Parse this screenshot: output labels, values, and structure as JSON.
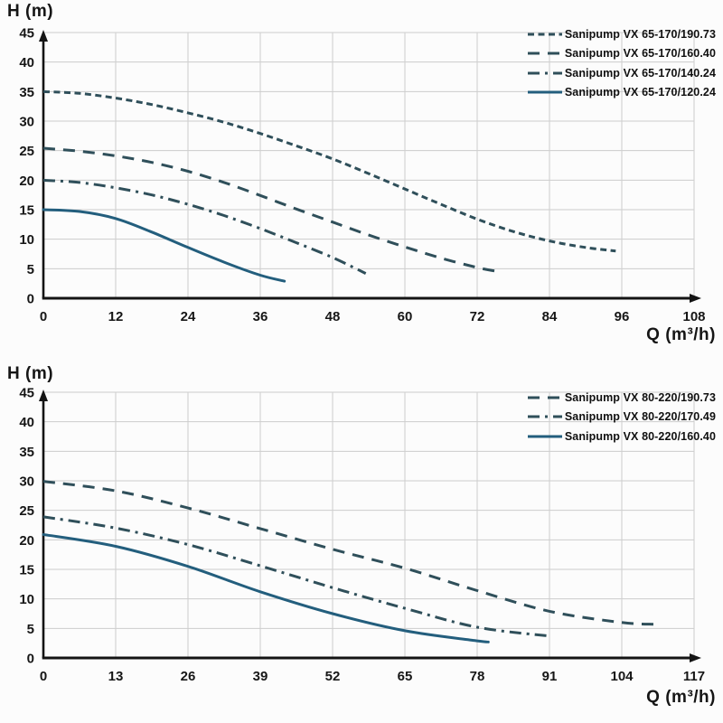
{
  "page": {
    "background": "#fcfcfc",
    "axis_color": "#141414",
    "grid_color": "#cdcdcd",
    "dash_color": "#2f4f5a",
    "solid_color": "#235e7d"
  },
  "chart_data": [
    {
      "type": "line",
      "title": "",
      "ylabel": "H (m)",
      "xlabel": "Q (m³/h)",
      "xlim": [
        0,
        108
      ],
      "ylim": [
        0,
        45
      ],
      "x_ticks": [
        0,
        12,
        24,
        36,
        48,
        60,
        72,
        84,
        96,
        108
      ],
      "y_ticks": [
        0,
        5,
        10,
        15,
        20,
        25,
        30,
        35,
        40,
        45
      ],
      "grid": true,
      "legend_position": "top-right",
      "series": [
        {
          "name": "Sanipump VX 65-170/190.73",
          "style": "dash-short",
          "color": "#2f4f5a",
          "points": [
            [
              0,
              35
            ],
            [
              6,
              34.7
            ],
            [
              12,
              33.9
            ],
            [
              18,
              32.8
            ],
            [
              24,
              31.4
            ],
            [
              30,
              29.8
            ],
            [
              36,
              27.9
            ],
            [
              42,
              25.8
            ],
            [
              48,
              23.6
            ],
            [
              54,
              21.1
            ],
            [
              60,
              18.5
            ],
            [
              66,
              15.9
            ],
            [
              72,
              13.4
            ],
            [
              78,
              11.3
            ],
            [
              84,
              9.7
            ],
            [
              90,
              8.6
            ],
            [
              95,
              8
            ]
          ]
        },
        {
          "name": "Sanipump VX 65-170/160.40",
          "style": "dash-long",
          "color": "#2f4f5a",
          "points": [
            [
              0,
              25.4
            ],
            [
              6,
              24.9
            ],
            [
              12,
              24.1
            ],
            [
              18,
              23
            ],
            [
              24,
              21.5
            ],
            [
              30,
              19.6
            ],
            [
              36,
              17.4
            ],
            [
              42,
              15.1
            ],
            [
              48,
              12.9
            ],
            [
              54,
              10.7
            ],
            [
              60,
              8.7
            ],
            [
              66,
              6.8
            ],
            [
              72,
              5.2
            ],
            [
              75,
              4.6
            ]
          ]
        },
        {
          "name": "Sanipump VX 65-170/140.24",
          "style": "dash-dot",
          "color": "#2f4f5a",
          "points": [
            [
              0,
              20
            ],
            [
              6,
              19.6
            ],
            [
              12,
              18.7
            ],
            [
              18,
              17.5
            ],
            [
              24,
              15.9
            ],
            [
              30,
              14
            ],
            [
              36,
              11.8
            ],
            [
              42,
              9.4
            ],
            [
              48,
              6.9
            ],
            [
              53.5,
              4.2
            ]
          ]
        },
        {
          "name": "Sanipump VX 65-170/120.24",
          "style": "solid",
          "color": "#235e7d",
          "points": [
            [
              0,
              15
            ],
            [
              6,
              14.7
            ],
            [
              12,
              13.5
            ],
            [
              18,
              11.2
            ],
            [
              24,
              8.6
            ],
            [
              30,
              6.1
            ],
            [
              36,
              3.9
            ],
            [
              40,
              2.9
            ]
          ]
        }
      ]
    },
    {
      "type": "line",
      "title": "",
      "ylabel": "H (m)",
      "xlabel": "Q (m³/h)",
      "xlim": [
        0,
        117
      ],
      "ylim": [
        0,
        45
      ],
      "x_ticks": [
        0,
        13,
        26,
        39,
        52,
        65,
        78,
        91,
        104,
        117
      ],
      "y_ticks": [
        0,
        5,
        10,
        15,
        20,
        25,
        30,
        35,
        40,
        45
      ],
      "grid": true,
      "legend_position": "top-right",
      "series": [
        {
          "name": "Sanipump VX 80-220/190.73",
          "style": "dash-long",
          "color": "#2f4f5a",
          "points": [
            [
              0,
              29.9
            ],
            [
              13,
              28.3
            ],
            [
              26,
              25.4
            ],
            [
              39,
              21.9
            ],
            [
              52,
              18.4
            ],
            [
              65,
              15.2
            ],
            [
              78,
              11.4
            ],
            [
              91,
              7.9
            ],
            [
              104,
              6
            ],
            [
              110,
              5.7
            ]
          ]
        },
        {
          "name": "Sanipump VX 80-220/170.49",
          "style": "dash-dot",
          "color": "#2f4f5a",
          "points": [
            [
              0,
              23.9
            ],
            [
              13,
              22
            ],
            [
              26,
              19.2
            ],
            [
              39,
              15.6
            ],
            [
              52,
              11.9
            ],
            [
              65,
              8.4
            ],
            [
              78,
              5.2
            ],
            [
              91,
              3.7
            ]
          ]
        },
        {
          "name": "Sanipump VX 80-220/160.40",
          "style": "solid",
          "color": "#235e7d",
          "points": [
            [
              0,
              20.9
            ],
            [
              13,
              18.9
            ],
            [
              26,
              15.5
            ],
            [
              39,
              11.2
            ],
            [
              52,
              7.5
            ],
            [
              65,
              4.6
            ],
            [
              78,
              2.9
            ],
            [
              80,
              2.7
            ]
          ]
        }
      ]
    }
  ]
}
